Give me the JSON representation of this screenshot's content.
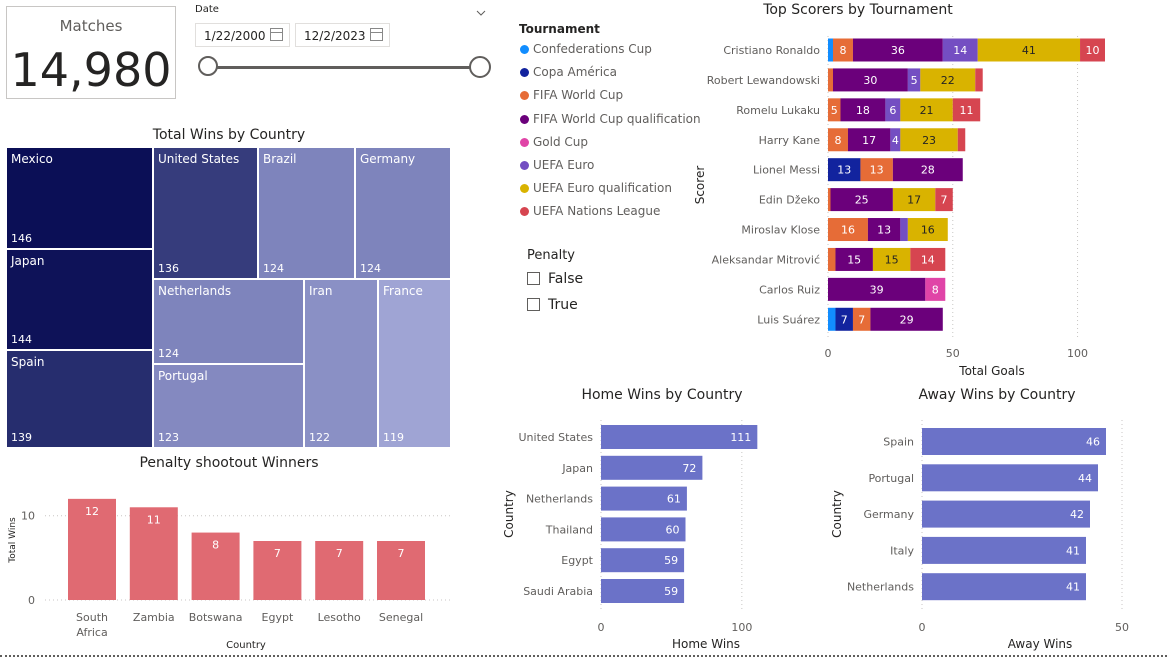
{
  "card": {
    "label": "Matches",
    "value": "14,980"
  },
  "date_slicer": {
    "label": "Date",
    "start": "1/22/2000",
    "end": "12/2/2023"
  },
  "tournament_legend": {
    "title": "Tournament",
    "items": [
      {
        "name": "Confederations Cup",
        "color": "#118dff"
      },
      {
        "name": "Copa América",
        "color": "#12239e"
      },
      {
        "name": "FIFA World Cup",
        "color": "#e66c37"
      },
      {
        "name": "FIFA World Cup qualification",
        "color": "#6b007b"
      },
      {
        "name": "Gold Cup",
        "color": "#e044a7"
      },
      {
        "name": "UEFA Euro",
        "color": "#744ec2"
      },
      {
        "name": "UEFA Euro qualification",
        "color": "#d9b300"
      },
      {
        "name": "UEFA Nations League",
        "color": "#d64550"
      }
    ]
  },
  "penalty_slicer": {
    "title": "Penalty",
    "options": [
      "False",
      "True"
    ]
  },
  "treemap": {
    "title": "Total Wins by Country",
    "cells": [
      {
        "name": "Mexico",
        "value": "146",
        "color": "#0b0f56"
      },
      {
        "name": "Japan",
        "value": "144",
        "color": "#0e1258"
      },
      {
        "name": "Spain",
        "value": "139",
        "color": "#262d6e"
      },
      {
        "name": "United States",
        "value": "136",
        "color": "#363c7c"
      },
      {
        "name": "Brazil",
        "value": "124",
        "color": "#7e84bc"
      },
      {
        "name": "Germany",
        "value": "124",
        "color": "#7e84bc"
      },
      {
        "name": "Netherlands",
        "value": "124",
        "color": "#7e84bc"
      },
      {
        "name": "Portugal",
        "value": "123",
        "color": "#8489c0"
      },
      {
        "name": "Iran",
        "value": "122",
        "color": "#8a90c5"
      },
      {
        "name": "France",
        "value": "119",
        "color": "#9fa4d4"
      }
    ]
  },
  "chart_data": [
    {
      "id": "top_scorers",
      "type": "bar",
      "orientation": "horizontal",
      "stacked": true,
      "title": "Top Scorers by Tournament",
      "xlabel": "Total Goals",
      "ylabel": "Scorer",
      "xlim": [
        0,
        110
      ],
      "xticks": [
        "0",
        "50",
        "100"
      ],
      "categories": [
        "Cristiano Ronaldo",
        "Robert Lewandowski",
        "Romelu Lukaku",
        "Harry Kane",
        "Lionel Messi",
        "Edin Džeko",
        "Miroslav Klose",
        "Aleksandar Mitrović",
        "Carlos Ruiz",
        "Luis Suárez"
      ],
      "series": [
        {
          "name": "Confederations Cup",
          "color": "#118dff",
          "values": [
            2,
            0,
            0,
            0,
            0,
            0,
            0,
            0,
            0,
            3
          ]
        },
        {
          "name": "Copa América",
          "color": "#12239e",
          "values": [
            0,
            0,
            0,
            0,
            13,
            0,
            0,
            0,
            0,
            7
          ]
        },
        {
          "name": "FIFA World Cup",
          "color": "#e66c37",
          "values": [
            8,
            2,
            5,
            8,
            13,
            1,
            16,
            3,
            0,
            7
          ]
        },
        {
          "name": "FIFA World Cup qualification",
          "color": "#6b007b",
          "values": [
            36,
            30,
            18,
            17,
            28,
            25,
            13,
            15,
            39,
            29
          ]
        },
        {
          "name": "Gold Cup",
          "color": "#e044a7",
          "values": [
            0,
            0,
            0,
            0,
            0,
            0,
            0,
            0,
            8,
            0
          ]
        },
        {
          "name": "UEFA Euro",
          "color": "#744ec2",
          "values": [
            14,
            5,
            6,
            4,
            0,
            0,
            3,
            0,
            0,
            0
          ]
        },
        {
          "name": "UEFA Euro qualification",
          "color": "#d9b300",
          "values": [
            41,
            22,
            21,
            23,
            0,
            17,
            16,
            15,
            0,
            0
          ]
        },
        {
          "name": "UEFA Nations League",
          "color": "#d64550",
          "values": [
            10,
            3,
            11,
            3,
            0,
            7,
            0,
            14,
            0,
            0
          ]
        }
      ]
    },
    {
      "id": "penalty_winners",
      "type": "bar",
      "title": "Penalty shootout Winners",
      "xlabel": "Country",
      "ylabel": "Total Wins",
      "ylim": [
        0,
        14
      ],
      "yticks": [
        "0",
        "10"
      ],
      "categories": [
        "South Africa",
        "Zambia",
        "Botswana",
        "Egypt",
        "Lesotho",
        "Senegal"
      ],
      "category_lines": [
        [
          "South",
          "Africa"
        ],
        [
          "Zambia"
        ],
        [
          "Botswana"
        ],
        [
          "Egypt"
        ],
        [
          "Lesotho"
        ],
        [
          "Senegal"
        ]
      ],
      "values": [
        12,
        11,
        8,
        7,
        7,
        7
      ],
      "color": "#e06a72"
    },
    {
      "id": "home_wins",
      "type": "bar",
      "orientation": "horizontal",
      "title": "Home Wins by Country",
      "xlabel": "Home Wins",
      "ylabel": "Country",
      "xlim": [
        0,
        120
      ],
      "xticks": [
        "0",
        "100"
      ],
      "categories": [
        "United States",
        "Japan",
        "Netherlands",
        "Thailand",
        "Egypt",
        "Saudi Arabia"
      ],
      "values": [
        111,
        72,
        61,
        60,
        59,
        59
      ],
      "color": "#6b72c8"
    },
    {
      "id": "away_wins",
      "type": "bar",
      "orientation": "horizontal",
      "title": "Away Wins by Country",
      "xlabel": "Away Wins",
      "ylabel": "Country",
      "xlim": [
        0,
        52
      ],
      "xticks": [
        "0",
        "50"
      ],
      "categories": [
        "Spain",
        "Portugal",
        "Germany",
        "Italy",
        "Netherlands"
      ],
      "values": [
        46,
        44,
        42,
        41,
        41
      ],
      "color": "#6b72c8"
    }
  ]
}
